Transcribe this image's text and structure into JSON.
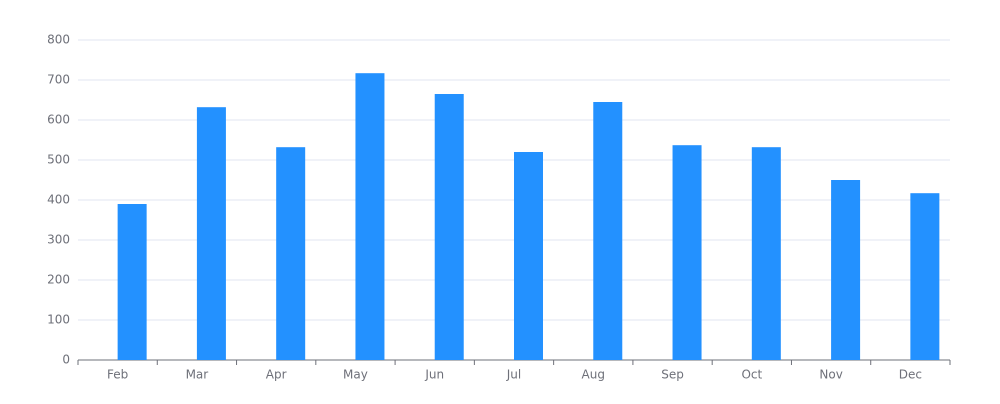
{
  "chart_data": {
    "type": "bar",
    "categories": [
      "Feb",
      "Mar",
      "Apr",
      "May",
      "Jun",
      "Jul",
      "Aug",
      "Sep",
      "Oct",
      "Nov",
      "Dec"
    ],
    "values": [
      390,
      632,
      532,
      717,
      665,
      520,
      645,
      537,
      532,
      450,
      417
    ],
    "color": "#2391ff",
    "ylim": [
      0,
      800
    ],
    "yticks": [
      0,
      100,
      200,
      300,
      400,
      500,
      600,
      700,
      800
    ],
    "grid": true
  }
}
